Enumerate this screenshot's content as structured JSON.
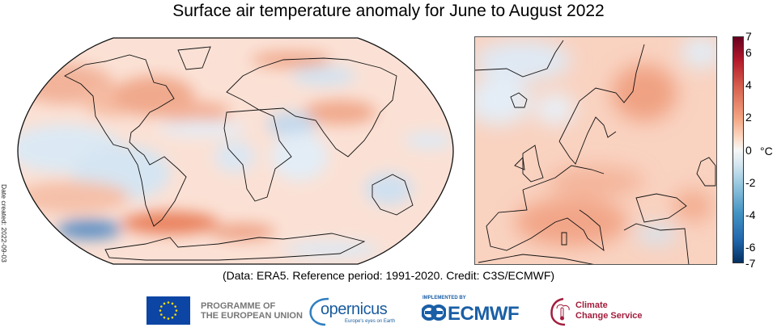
{
  "chart_data": {
    "type": "heatmap",
    "title": "Surface air temperature anomaly for June to August 2022",
    "panels": [
      {
        "name": "Global map",
        "projection": "Robinson"
      },
      {
        "name": "Europe map",
        "region": "Europe"
      }
    ],
    "colorbar": {
      "min": -7,
      "max": 7,
      "ticks": [
        "7",
        "6",
        "4",
        "2",
        "0",
        "-2",
        "-4",
        "-6",
        "-7"
      ],
      "tick_values": [
        7,
        6,
        4,
        2,
        0,
        -2,
        -4,
        -6,
        -7
      ],
      "unit": "°C",
      "colormap": "diverging blue-white-red",
      "colors": {
        "max": "#67001f",
        "mid": "#f7f7f7",
        "min": "#053061"
      }
    },
    "caption": "(Data: ERA5.  Reference period: 1991-2020.  Credit: C3S/ECMWF)",
    "date_created": "Date created: 2022-09-03"
  },
  "logos": {
    "eu_text_line1": "PROGRAMME OF",
    "eu_text_line2": "THE EUROPEAN UNION",
    "copernicus_word": "opernicus",
    "copernicus_tagline": "Europe's eyes on Earth",
    "ecmwf_implemented": "IMPLEMENTED BY",
    "ecmwf_word": "ECMWF",
    "c3s_line1": "Climate",
    "c3s_line2": "Change Service"
  },
  "colors": {
    "eu_blue": "#0d45a5",
    "copernicus_blue": "#1a5c9e",
    "ecmwf_blue": "#1a5fa6",
    "c3s_red": "#a31c3c"
  }
}
